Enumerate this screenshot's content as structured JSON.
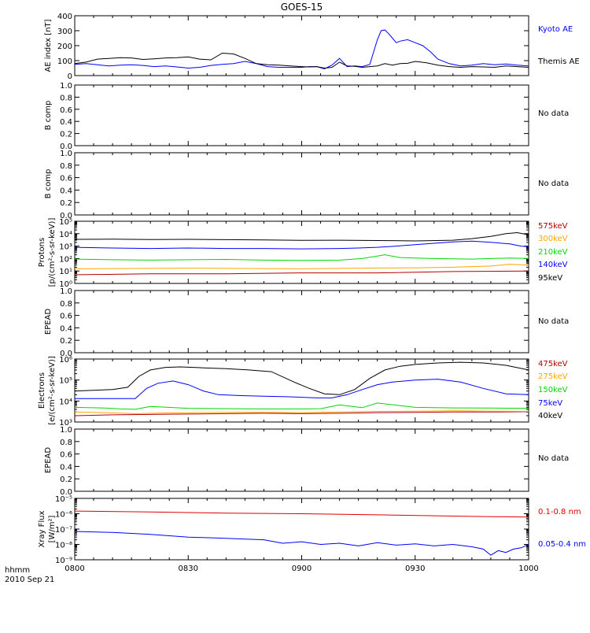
{
  "title": "GOES-15",
  "footer": {
    "line1": "hhmm",
    "line2": "2010 Sep 21"
  },
  "time_ticks": [
    "0800",
    "0830",
    "0900",
    "0930",
    "1000"
  ],
  "colors": {
    "black": "#000000",
    "blue": "#0000ff",
    "green": "#00d800",
    "orange": "#ffa500",
    "dark_red": "#b40000",
    "red": "#e00000"
  },
  "chart_data": [
    {
      "type": "line",
      "ylabel": "AE index [nT]",
      "xlim": [
        0,
        120
      ],
      "ylim": [
        0,
        400
      ],
      "yticks": [
        "0",
        "100",
        "200",
        "300",
        "400"
      ],
      "series": [
        {
          "name": "Kyoto AE",
          "color": "#0000ff",
          "x": [
            0,
            3,
            6,
            9,
            12,
            15,
            18,
            21,
            24,
            27,
            30,
            33,
            36,
            39,
            42,
            45,
            48,
            51,
            54,
            57,
            60,
            62,
            64,
            66,
            68,
            70,
            72,
            74,
            76,
            78,
            80,
            81,
            82,
            83,
            84,
            85,
            86,
            88,
            90,
            92,
            94,
            96,
            99,
            102,
            105,
            108,
            111,
            114,
            117,
            120
          ],
          "y": [
            75,
            80,
            72,
            65,
            70,
            72,
            68,
            60,
            65,
            58,
            50,
            55,
            68,
            75,
            80,
            95,
            80,
            60,
            55,
            55,
            55,
            60,
            60,
            45,
            70,
            115,
            60,
            65,
            60,
            75,
            240,
            300,
            305,
            280,
            250,
            220,
            230,
            240,
            220,
            200,
            160,
            110,
            80,
            65,
            70,
            80,
            72,
            78,
            70,
            65
          ]
        },
        {
          "name": "Themis AE",
          "color": "#000000",
          "x": [
            0,
            3,
            6,
            9,
            12,
            15,
            18,
            21,
            24,
            27,
            30,
            33,
            36,
            39,
            42,
            45,
            48,
            51,
            54,
            57,
            60,
            62,
            64,
            66,
            68,
            70,
            72,
            74,
            76,
            78,
            80,
            82,
            84,
            86,
            88,
            90,
            93,
            96,
            99,
            102,
            105,
            108,
            111,
            114,
            117,
            120
          ],
          "y": [
            80,
            90,
            110,
            115,
            120,
            118,
            108,
            112,
            118,
            120,
            125,
            110,
            105,
            150,
            145,
            115,
            80,
            72,
            70,
            65,
            60,
            58,
            60,
            50,
            55,
            90,
            65,
            62,
            55,
            60,
            65,
            80,
            70,
            80,
            82,
            95,
            85,
            70,
            60,
            55,
            60,
            58,
            55,
            65,
            60,
            55
          ]
        }
      ],
      "legend": [
        "Kyoto AE",
        "Themis AE"
      ]
    },
    {
      "type": "line",
      "ylabel": "B comp",
      "ylim": [
        0,
        1
      ],
      "yticks": [
        "0.0",
        "0.2",
        "0.4",
        "0.6",
        "0.8",
        "1.0"
      ],
      "note": "No data",
      "series": []
    },
    {
      "type": "line",
      "ylabel": "B comp",
      "ylim": [
        0,
        1
      ],
      "yticks": [
        "0.0",
        "0.2",
        "0.4",
        "0.6",
        "0.8",
        "1.0"
      ],
      "note": "No data",
      "series": []
    },
    {
      "type": "line",
      "ylabel": "Protons",
      "ylabel2": "[p/(cm²-s-sr-keV)]",
      "scale": "log",
      "ylim": [
        0,
        5
      ],
      "yticks": [
        "10⁰",
        "10¹",
        "10²",
        "10³",
        "10⁴",
        "10⁵"
      ],
      "series": [
        {
          "name": "575keV",
          "color": "#b40000",
          "x": [
            0,
            20,
            40,
            60,
            80,
            100,
            120
          ],
          "y": [
            5,
            6,
            6,
            7,
            7,
            9,
            10
          ]
        },
        {
          "name": "300keV",
          "color": "#ffa500",
          "x": [
            0,
            15,
            30,
            45,
            60,
            75,
            90,
            100,
            110,
            115,
            120
          ],
          "y": [
            15,
            16,
            17,
            16,
            15,
            17,
            18,
            20,
            25,
            35,
            30
          ]
        },
        {
          "name": "210keV",
          "color": "#00d800",
          "x": [
            0,
            10,
            20,
            30,
            40,
            50,
            60,
            70,
            76,
            82,
            86,
            90,
            95,
            100,
            105,
            110,
            115,
            120
          ],
          "y": [
            90,
            80,
            75,
            80,
            85,
            75,
            70,
            75,
            100,
            200,
            120,
            110,
            100,
            95,
            90,
            100,
            110,
            100
          ]
        },
        {
          "name": "140keV",
          "color": "#0000ff",
          "x": [
            0,
            10,
            20,
            30,
            40,
            50,
            60,
            70,
            75,
            80,
            85,
            90,
            95,
            100,
            105,
            110,
            115,
            118,
            120
          ],
          "y": [
            800,
            700,
            650,
            700,
            650,
            650,
            600,
            650,
            700,
            800,
            1000,
            1300,
            1700,
            2200,
            2500,
            2000,
            1500,
            1000,
            900
          ]
        },
        {
          "name": "95keV",
          "color": "#000000",
          "x": [
            0,
            10,
            20,
            30,
            40,
            50,
            60,
            70,
            80,
            90,
            100,
            105,
            110,
            114,
            117,
            120
          ],
          "y": [
            3500,
            3600,
            3400,
            3500,
            3300,
            3100,
            2900,
            3000,
            2800,
            2600,
            3000,
            4000,
            6000,
            10000,
            12000,
            8000
          ]
        }
      ],
      "legend": [
        "575keV",
        "300keV",
        "210keV",
        "140keV",
        "95keV"
      ]
    },
    {
      "type": "line",
      "ylabel": "EPEAD",
      "ylim": [
        0,
        1
      ],
      "yticks": [
        "0.0",
        "0.2",
        "0.4",
        "0.6",
        "0.8",
        "1.0"
      ],
      "note": "No data",
      "series": []
    },
    {
      "type": "line",
      "ylabel": "Electrons",
      "ylabel2": "[e/(cm²-s-sr-keV)]",
      "scale": "log",
      "ylim": [
        3,
        6
      ],
      "yticks": [
        "10³",
        "10⁴",
        "10⁵",
        "10⁶"
      ],
      "series": [
        {
          "name": "475keV",
          "color": "#b40000",
          "x": [
            0,
            10,
            20,
            30,
            40,
            50,
            60,
            70,
            80,
            90,
            100,
            110,
            120
          ],
          "y": [
            2000,
            2200,
            2300,
            2400,
            2500,
            2600,
            2500,
            2600,
            2800,
            2900,
            3000,
            3000,
            3100
          ]
        },
        {
          "name": "275keV",
          "color": "#ffa500",
          "x": [
            0,
            8,
            16,
            24,
            32,
            40,
            50,
            60,
            70,
            80,
            90,
            100,
            110,
            120
          ],
          "y": [
            3000,
            2800,
            2500,
            2700,
            2800,
            2900,
            2900,
            2800,
            3000,
            3200,
            3300,
            3400,
            3300,
            3200
          ]
        },
        {
          "name": "150keV",
          "color": "#00d800",
          "x": [
            0,
            8,
            12,
            16,
            20,
            30,
            40,
            50,
            60,
            65,
            70,
            76,
            80,
            90,
            100,
            110,
            120
          ],
          "y": [
            5000,
            4600,
            4200,
            4000,
            5500,
            4500,
            4300,
            4200,
            4200,
            4300,
            6500,
            4800,
            8000,
            5000,
            4700,
            4600,
            4500
          ]
        },
        {
          "name": "75keV",
          "color": "#0000ff",
          "x": [
            0,
            10,
            16,
            19,
            22,
            26,
            30,
            34,
            38,
            44,
            50,
            56,
            60,
            64,
            68,
            72,
            76,
            80,
            84,
            90,
            96,
            102,
            108,
            114,
            120
          ],
          "y": [
            13000,
            13000,
            13000,
            40000,
            70000,
            90000,
            60000,
            30000,
            20000,
            18000,
            17000,
            16000,
            15000,
            14000,
            14000,
            20000,
            35000,
            60000,
            80000,
            100000,
            110000,
            80000,
            40000,
            22000,
            20000
          ]
        },
        {
          "name": "40keV",
          "color": "#000000",
          "x": [
            0,
            10,
            14,
            17,
            20,
            24,
            28,
            34,
            40,
            46,
            52,
            58,
            62,
            66,
            70,
            74,
            78,
            82,
            86,
            90,
            96,
            102,
            108,
            114,
            120
          ],
          "y": [
            30000,
            35000,
            45000,
            150000,
            300000,
            400000,
            420000,
            380000,
            350000,
            300000,
            250000,
            80000,
            40000,
            22000,
            20000,
            35000,
            120000,
            300000,
            450000,
            550000,
            650000,
            700000,
            650000,
            500000,
            300000
          ]
        }
      ],
      "legend": [
        "475keV",
        "275keV",
        "150keV",
        "75keV",
        "40keV"
      ]
    },
    {
      "type": "line",
      "ylabel": "EPEAD",
      "ylim": [
        0,
        1
      ],
      "yticks": [
        "0.0",
        "0.2",
        "0.4",
        "0.6",
        "0.8",
        "1.0"
      ],
      "note": "No data",
      "series": []
    },
    {
      "type": "line",
      "ylabel": "Xray Flux",
      "ylabel2": "[W/m²]",
      "scale": "log",
      "ylim": [
        -9,
        -5
      ],
      "yticks": [
        "10⁻⁹",
        "10⁻⁸",
        "10⁻⁷",
        "10⁻⁶",
        "10⁻⁵"
      ],
      "series": [
        {
          "name": "0.1-0.8 nm",
          "color": "#e00000",
          "x": [
            0,
            20,
            40,
            60,
            80,
            100,
            120
          ],
          "y": [
            1.5e-06,
            1.3e-06,
            1.1e-06,
            1e-06,
            8.5e-07,
            7e-07,
            6e-07
          ]
        },
        {
          "name": "0.05-0.4 nm",
          "color": "#0000ff",
          "x": [
            0,
            10,
            20,
            30,
            40,
            50,
            55,
            60,
            65,
            70,
            75,
            80,
            85,
            90,
            95,
            100,
            105,
            108,
            110,
            112,
            114,
            116,
            118,
            120
          ],
          "y": [
            7e-08,
            6e-08,
            4.5e-08,
            3e-08,
            2.5e-08,
            2e-08,
            1.2e-08,
            1.5e-08,
            1e-08,
            1.2e-08,
            8e-09,
            1.3e-08,
            9e-09,
            1.1e-08,
            8e-09,
            1e-08,
            7e-09,
            5e-09,
            2e-09,
            4e-09,
            3e-09,
            5e-09,
            6e-09,
            1e-08
          ]
        }
      ],
      "legend": [
        "0.1-0.8 nm",
        "0.05-0.4 nm"
      ]
    }
  ]
}
